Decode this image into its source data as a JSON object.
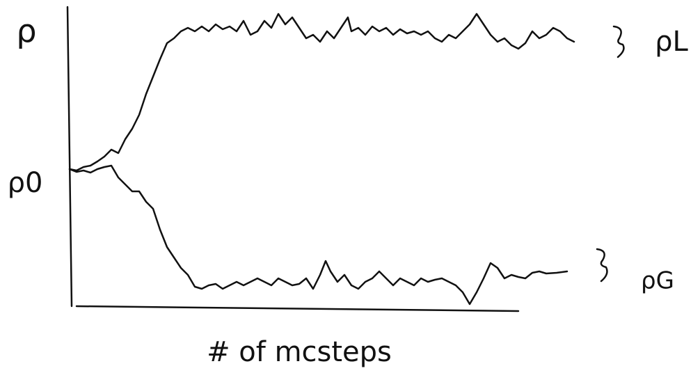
{
  "axes": {
    "y_label": "ρ",
    "x_label": "# of mcsteps"
  },
  "annotations": {
    "start": "ρ0",
    "upper": "ρL",
    "lower": "ρG"
  }
}
